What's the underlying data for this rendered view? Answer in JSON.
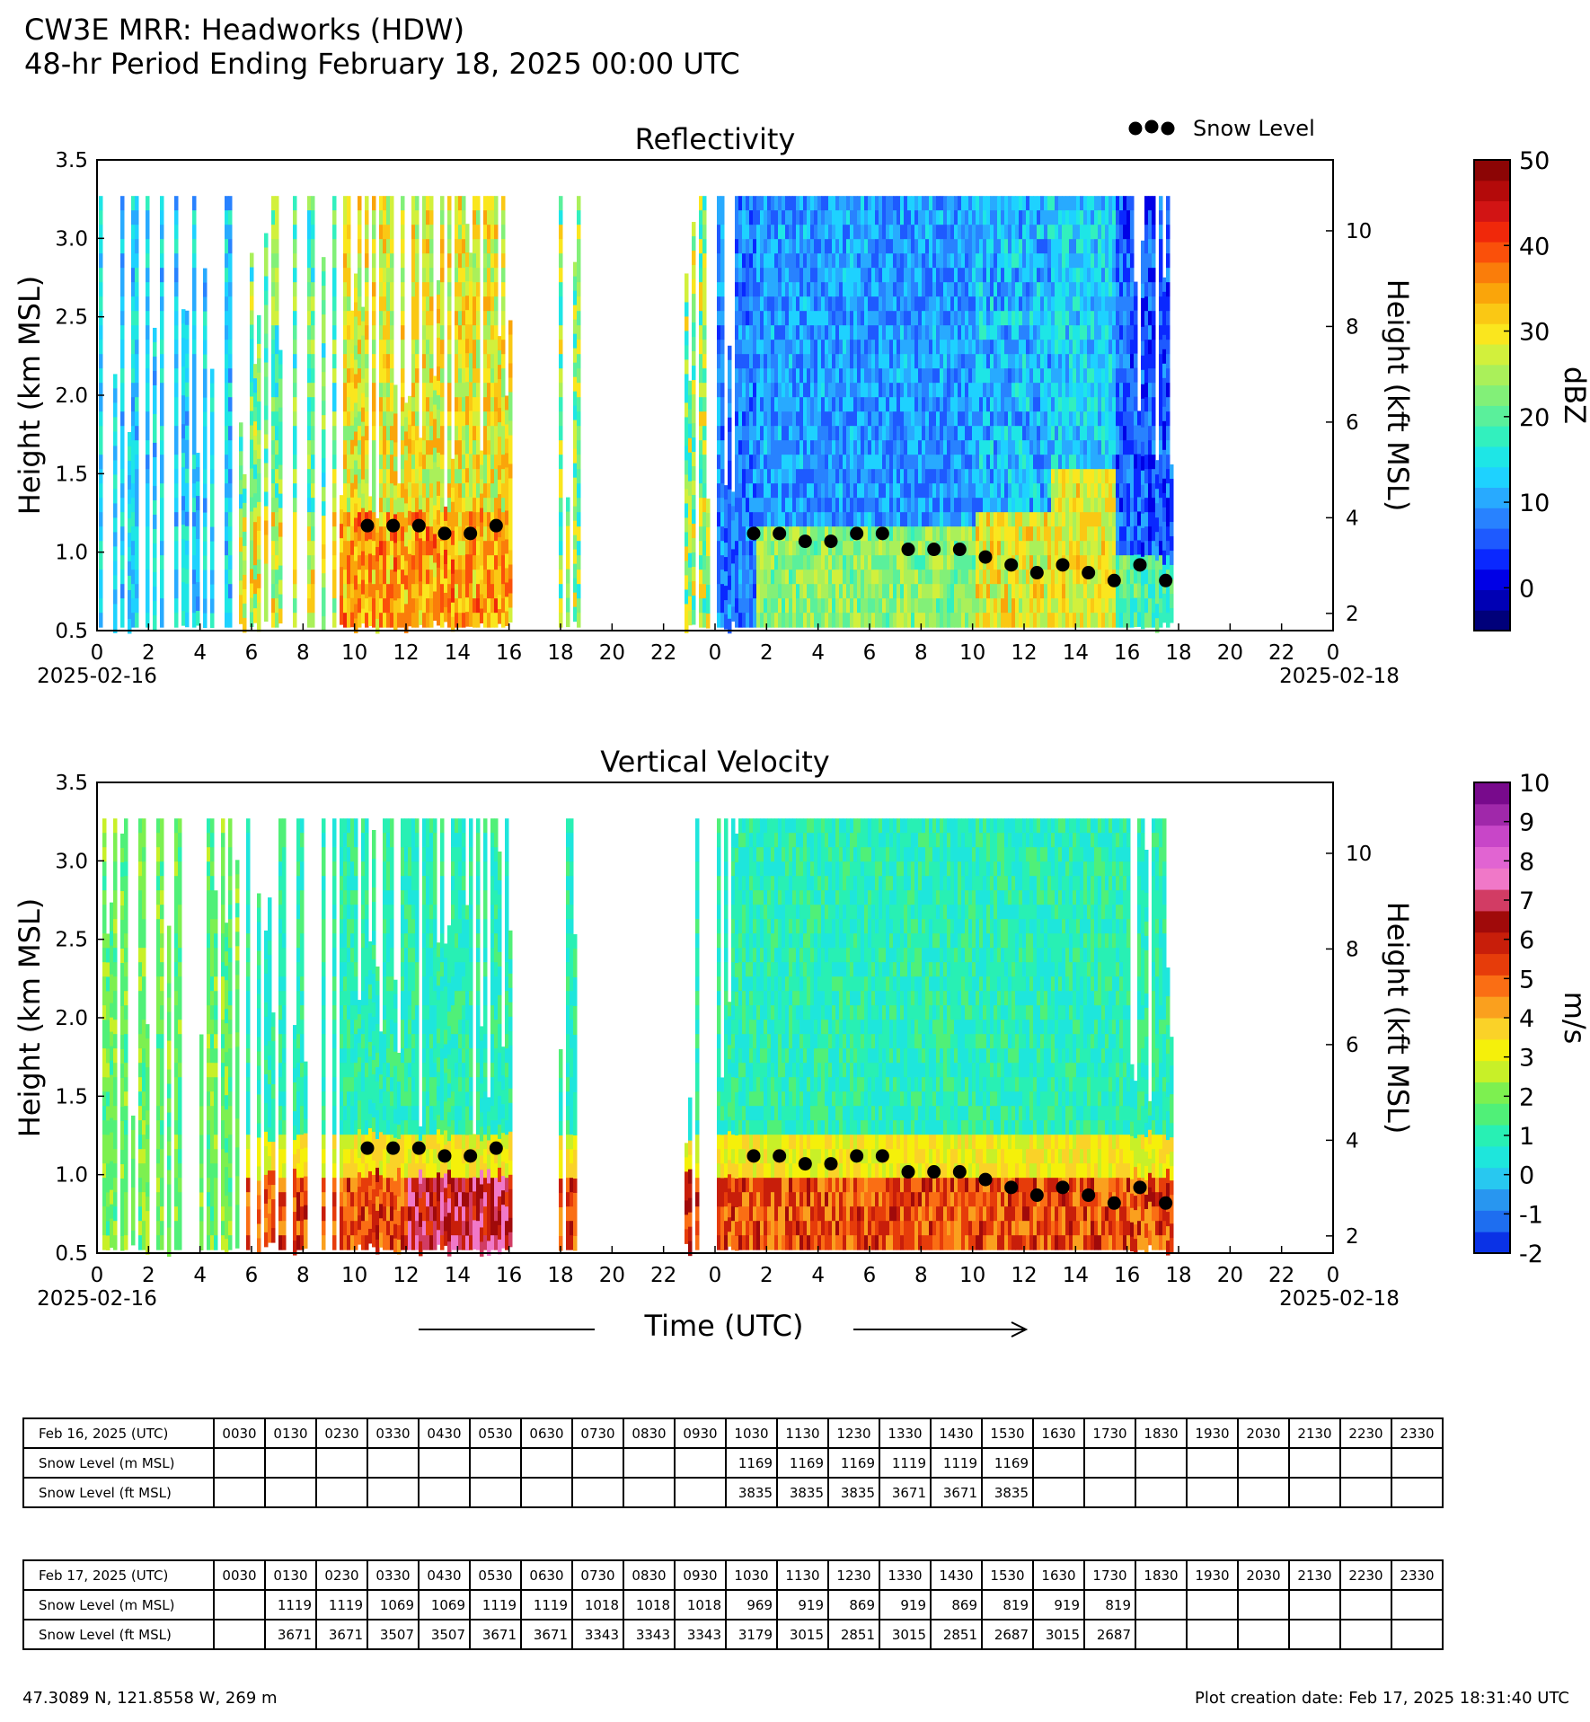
{
  "header": {
    "title_line1": "CW3E MRR: Headworks (HDW)",
    "title_line2": "48-hr Period Ending February 18, 2025 00:00 UTC"
  },
  "legend": {
    "snow_level_label": "Snow Level"
  },
  "xaxis": {
    "label": "Time (UTC)",
    "tick_labels": [
      "0",
      "2",
      "4",
      "6",
      "8",
      "10",
      "12",
      "14",
      "16",
      "18",
      "20",
      "22",
      "0",
      "2",
      "4",
      "6",
      "8",
      "10",
      "12",
      "14",
      "16",
      "18",
      "20",
      "22",
      "0"
    ],
    "start_date": "2025-02-16",
    "end_date": "2025-02-18"
  },
  "chart_data": [
    {
      "type": "heatmap",
      "title": "Reflectivity",
      "ylabel": "Height (km MSL)",
      "ylabel_right": "Height (kft MSL)",
      "ylim": [
        0.5,
        3.5
      ],
      "yticks": [
        "0.5",
        "1.0",
        "1.5",
        "2.0",
        "2.5",
        "3.0",
        "3.5"
      ],
      "yticks_right": [
        "2",
        "4",
        "6",
        "8",
        "10"
      ],
      "xlim_hours": [
        0,
        48
      ],
      "colorbar": {
        "label": "dBZ",
        "range": [
          -5,
          50
        ],
        "ticks": [
          "0",
          "10",
          "20",
          "30",
          "40",
          "50"
        ]
      },
      "field": "reflectivity",
      "gap_hours": [
        [
          16.4,
          17.9
        ],
        [
          18.9,
          22.8
        ]
      ],
      "snow_level_points": {
        "x_hours": [
          10.5,
          11.5,
          12.5,
          13.5,
          14.5,
          15.5,
          25.5,
          26.5,
          27.5,
          28.5,
          29.5,
          30.5,
          31.5,
          32.5,
          33.5,
          34.5,
          35.5,
          36.5,
          37.5,
          38.5,
          39.5,
          40.5,
          41.5
        ],
        "y_km": [
          1.169,
          1.169,
          1.169,
          1.119,
          1.119,
          1.169,
          1.119,
          1.119,
          1.069,
          1.069,
          1.119,
          1.119,
          1.018,
          1.018,
          1.018,
          0.969,
          0.919,
          0.869,
          0.919,
          0.869,
          0.819,
          0.919,
          0.819
        ]
      }
    },
    {
      "type": "heatmap",
      "title": "Vertical Velocity",
      "ylabel": "Height (km MSL)",
      "ylabel_right": "Height (kft MSL)",
      "ylim": [
        0.5,
        3.5
      ],
      "yticks": [
        "0.5",
        "1.0",
        "1.5",
        "2.0",
        "2.5",
        "3.0",
        "3.5"
      ],
      "yticks_right": [
        "2",
        "4",
        "6",
        "8",
        "10"
      ],
      "xlim_hours": [
        0,
        48
      ],
      "colorbar": {
        "label": "m/s",
        "range": [
          -2,
          10
        ],
        "ticks": [
          "-2",
          "-1",
          "0",
          "1",
          "2",
          "3",
          "4",
          "5",
          "6",
          "7",
          "8",
          "9",
          "10"
        ]
      },
      "field": "velocity",
      "gap_hours": [
        [
          16.4,
          17.9
        ],
        [
          18.9,
          22.8
        ]
      ],
      "snow_level_points": {
        "x_hours": [
          10.5,
          11.5,
          12.5,
          13.5,
          14.5,
          15.5,
          25.5,
          26.5,
          27.5,
          28.5,
          29.5,
          30.5,
          31.5,
          32.5,
          33.5,
          34.5,
          35.5,
          36.5,
          37.5,
          38.5,
          39.5,
          40.5,
          41.5
        ],
        "y_km": [
          1.169,
          1.169,
          1.169,
          1.119,
          1.119,
          1.169,
          1.119,
          1.119,
          1.069,
          1.069,
          1.119,
          1.119,
          1.018,
          1.018,
          1.018,
          0.969,
          0.919,
          0.869,
          0.919,
          0.869,
          0.819,
          0.919,
          0.819
        ]
      }
    }
  ],
  "tables": [
    {
      "date_label": "Feb 16, 2025 (UTC)",
      "times": [
        "0030",
        "0130",
        "0230",
        "0330",
        "0430",
        "0530",
        "0630",
        "0730",
        "0830",
        "0930",
        "1030",
        "1130",
        "1230",
        "1330",
        "1430",
        "1530",
        "1630",
        "1730",
        "1830",
        "1930",
        "2030",
        "2130",
        "2230",
        "2330"
      ],
      "rows": [
        {
          "label": "Snow Level (m MSL)",
          "values": [
            "",
            "",
            "",
            "",
            "",
            "",
            "",
            "",
            "",
            "",
            "1169",
            "1169",
            "1169",
            "1119",
            "1119",
            "1169",
            "",
            "",
            "",
            "",
            "",
            "",
            "",
            ""
          ]
        },
        {
          "label": "Snow Level (ft MSL)",
          "values": [
            "",
            "",
            "",
            "",
            "",
            "",
            "",
            "",
            "",
            "",
            "3835",
            "3835",
            "3835",
            "3671",
            "3671",
            "3835",
            "",
            "",
            "",
            "",
            "",
            "",
            "",
            ""
          ]
        }
      ]
    },
    {
      "date_label": "Feb 17, 2025 (UTC)",
      "times": [
        "0030",
        "0130",
        "0230",
        "0330",
        "0430",
        "0530",
        "0630",
        "0730",
        "0830",
        "0930",
        "1030",
        "1130",
        "1230",
        "1330",
        "1430",
        "1530",
        "1630",
        "1730",
        "1830",
        "1930",
        "2030",
        "2130",
        "2230",
        "2330"
      ],
      "rows": [
        {
          "label": "Snow Level (m MSL)",
          "values": [
            "",
            "1119",
            "1119",
            "1069",
            "1069",
            "1119",
            "1119",
            "1018",
            "1018",
            "1018",
            "969",
            "919",
            "869",
            "919",
            "869",
            "819",
            "919",
            "819",
            "",
            "",
            "",
            "",
            "",
            ""
          ]
        },
        {
          "label": "Snow Level (ft MSL)",
          "values": [
            "",
            "3671",
            "3671",
            "3507",
            "3507",
            "3671",
            "3671",
            "3343",
            "3343",
            "3343",
            "3179",
            "3015",
            "2851",
            "3015",
            "2851",
            "2687",
            "3015",
            "2687",
            "",
            "",
            "",
            "",
            "",
            ""
          ]
        }
      ]
    }
  ],
  "footer": {
    "location": "47.3089 N, 121.8558 W, 269 m",
    "creation": "Plot creation date: Feb 17, 2025 18:31:40 UTC"
  }
}
